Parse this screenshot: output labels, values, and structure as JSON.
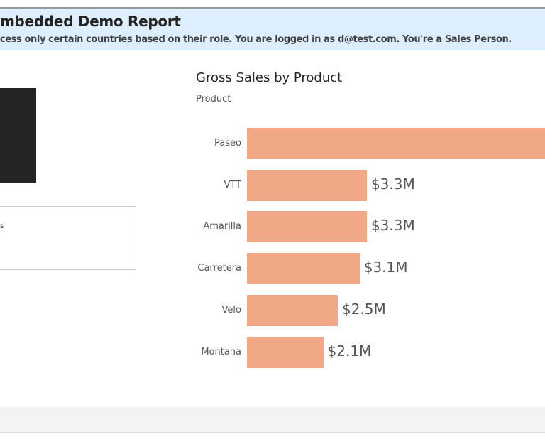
{
  "header": {
    "title": "mbedded Demo Report",
    "subtitle": "cess only certain countries based on their role. You are logged in as d@test.com. You're a Sales Person."
  },
  "slicer": {
    "text": "s"
  },
  "chart_data": {
    "type": "bar",
    "orientation": "horizontal",
    "title": "Gross Sales by Product",
    "ylabel": "Product",
    "categories": [
      "Paseo",
      "VTT",
      "Amarilla",
      "Carretera",
      "Velo",
      "Montana"
    ],
    "values": [
      null,
      3.3,
      3.3,
      3.1,
      2.5,
      2.1
    ],
    "data_labels": [
      "",
      "$3.3M",
      "$3.3M",
      "$3.1M",
      "$2.5M",
      "$2.1M"
    ],
    "unit": "$M",
    "bar_color": "#f0a887",
    "grid": false
  }
}
